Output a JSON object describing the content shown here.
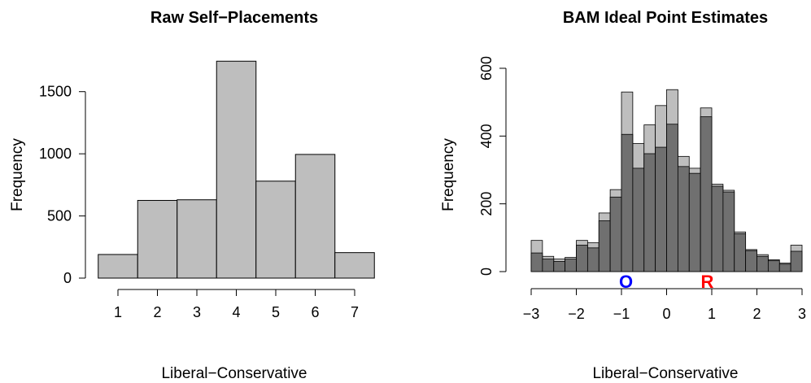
{
  "chart_data": [
    {
      "type": "bar",
      "title": "Raw Self−Placements",
      "xlabel": "Liberal−Conservative",
      "ylabel": "Frequency",
      "categories": [
        "1",
        "2",
        "3",
        "4",
        "5",
        "6",
        "7"
      ],
      "values": [
        190,
        625,
        630,
        1745,
        780,
        995,
        205
      ],
      "ylim": [
        0,
        1750
      ],
      "y_ticks": [
        "0",
        "500",
        "1000",
        "1500"
      ],
      "x_ticks": [
        "1",
        "2",
        "3",
        "4",
        "5",
        "6",
        "7"
      ],
      "grid": false,
      "bar_color": "#bebebe"
    },
    {
      "type": "bar",
      "title": "BAM Ideal Point Estimates",
      "xlabel": "Liberal−Conservative",
      "ylabel": "Frequency",
      "bin_width": 0.25,
      "x_range": [
        -3,
        3
      ],
      "ylim": [
        0,
        600
      ],
      "x_ticks": [
        "−3",
        "−2",
        "−1",
        "0",
        "1",
        "2",
        "3"
      ],
      "y_ticks": [
        "0",
        "200",
        "400",
        "600"
      ],
      "grid": false,
      "series": [
        {
          "color": "#bebebe",
          "values": [
            92,
            45,
            37,
            42,
            92,
            85,
            173,
            242,
            530,
            378,
            433,
            490,
            537,
            340,
            305,
            483,
            258,
            240,
            117,
            65,
            50,
            35,
            25,
            78
          ]
        },
        {
          "color": "#707070",
          "values": [
            55,
            37,
            30,
            37,
            78,
            70,
            150,
            220,
            405,
            305,
            348,
            367,
            435,
            310,
            290,
            457,
            252,
            235,
            112,
            62,
            45,
            32,
            22,
            60
          ]
        }
      ],
      "annotations": [
        {
          "text": "O",
          "x": -0.9,
          "color": "#0000ff"
        },
        {
          "text": "R",
          "x": 0.9,
          "color": "#ff0000"
        }
      ]
    }
  ]
}
